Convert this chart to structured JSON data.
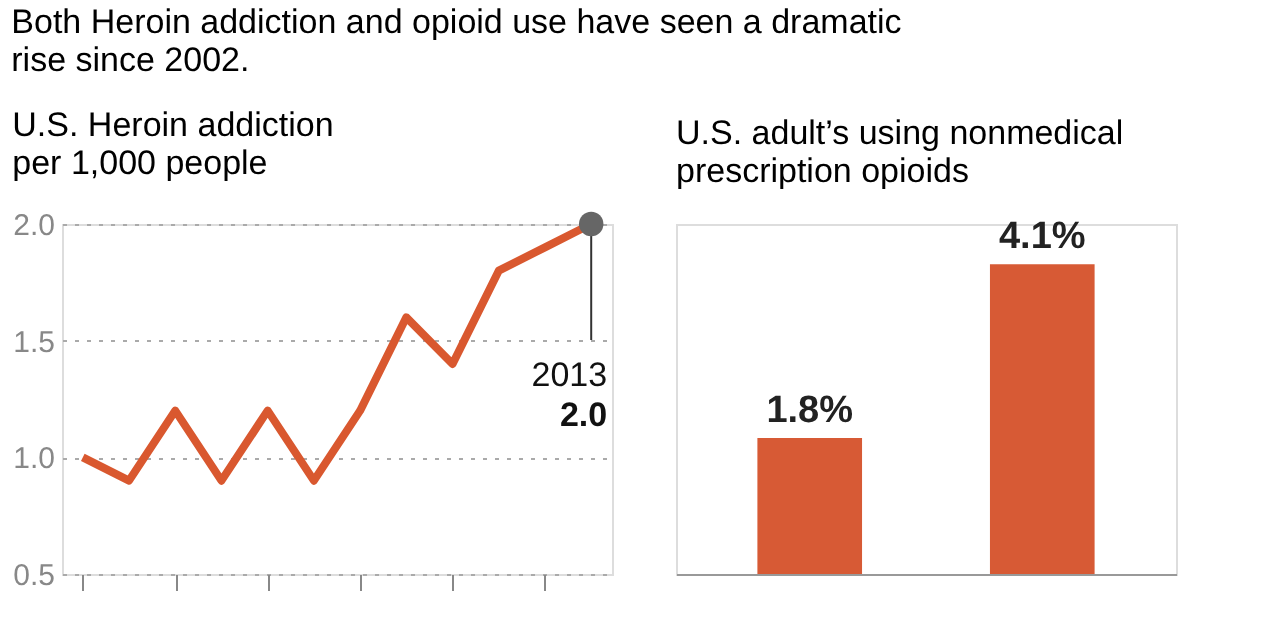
{
  "chart_data": [
    {
      "type": "line",
      "title": "U.S. Heroin addiction\nper 1,000 people",
      "annotations": [
        "Both Heroin addiction and opioid use have seen a dramatic\nrise since 2002.",
        "2013",
        "2.0"
      ],
      "categories": [
        null,
        null,
        null,
        null,
        null,
        null,
        null,
        null,
        null,
        null,
        null,
        null
      ],
      "series": [
        {
          "color": "#d9582f",
          "values": [
            1.0,
            0.9,
            1.2,
            0.9,
            1.2,
            0.9,
            1.2,
            1.6,
            1.4,
            1.8,
            1.9,
            2.0
          ]
        }
      ],
      "ylim": [
        0.5,
        2.0
      ],
      "yticks": [
        {
          "value": 0.5,
          "label": "0.5"
        },
        {
          "value": 1.0,
          "label": "1.0"
        },
        {
          "value": 1.5,
          "label": "1.5"
        },
        {
          "value": 2.0,
          "label": "2.0"
        }
      ],
      "grid": "y",
      "tick_labels": "y",
      "legend": false
    },
    {
      "type": "bar",
      "title": "U.S. adult’s using nonmedical\nprescription opioids",
      "categories": [
        null,
        null
      ],
      "values": [
        1.8,
        4.1
      ],
      "colors": [
        "#d75a35",
        "#d75a35"
      ],
      "value_labels": [
        "1.8%",
        "4.1%"
      ],
      "tick_labels": false,
      "grid": false,
      "legend": false
    }
  ]
}
